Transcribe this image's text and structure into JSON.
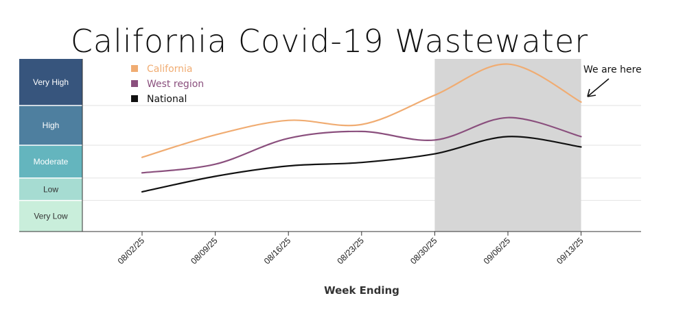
{
  "chart_data": {
    "type": "line",
    "title": "California Covid-19 Wastewater",
    "xlabel": "Week Ending",
    "ylabel": "",
    "x": [
      "08/02/25",
      "08/09/25",
      "08/16/25",
      "08/23/25",
      "08/30/25",
      "09/06/25",
      "09/13/25"
    ],
    "ylim": [
      0,
      5
    ],
    "levels": [
      {
        "label": "Very Low",
        "from": 0,
        "to": 0.9,
        "color": "#c9eedb",
        "text_color": "#333333"
      },
      {
        "label": "Low",
        "from": 0.9,
        "to": 1.55,
        "color": "#a6dcd2",
        "text_color": "#333333"
      },
      {
        "label": "Moderate",
        "from": 1.55,
        "to": 2.5,
        "color": "#64b5be",
        "text_color": "#ffffff"
      },
      {
        "label": "High",
        "from": 2.5,
        "to": 3.65,
        "color": "#4e7f9f",
        "text_color": "#ffffff"
      },
      {
        "label": "Very High",
        "from": 3.65,
        "to": 5,
        "color": "#37557d",
        "text_color": "#ffffff"
      }
    ],
    "series": [
      {
        "name": "California",
        "color": "#f0ac72",
        "values": [
          2.15,
          2.8,
          3.22,
          3.1,
          3.95,
          4.85,
          3.75
        ]
      },
      {
        "name": "West region",
        "color": "#8a4f7d",
        "values": [
          1.7,
          1.95,
          2.7,
          2.9,
          2.65,
          3.3,
          2.75
        ]
      },
      {
        "name": "National",
        "color": "#111111",
        "values": [
          1.15,
          1.6,
          1.9,
          2.0,
          2.25,
          2.75,
          2.45
        ]
      }
    ],
    "shaded_range": [
      "08/30/25",
      "09/13/25"
    ],
    "legend_position": "top-left",
    "grid": true,
    "annotation": {
      "text": "We are here",
      "points_to": "09/13/25"
    }
  }
}
